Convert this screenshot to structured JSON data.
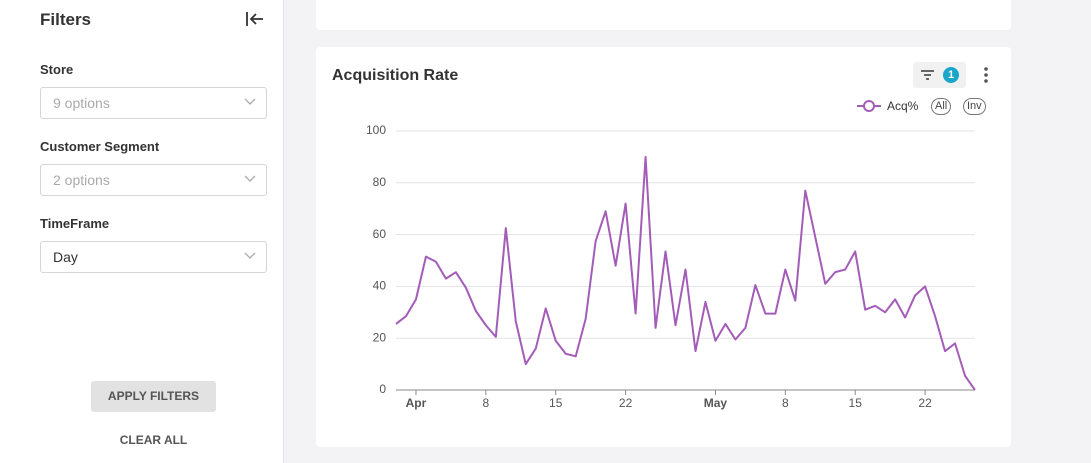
{
  "sidebar": {
    "title": "Filters",
    "filters": [
      {
        "label": "Store",
        "value": "9 options",
        "placeholder": true
      },
      {
        "label": "Customer Segment",
        "value": "2 options",
        "placeholder": true
      },
      {
        "label": "TimeFrame",
        "value": "Day",
        "placeholder": false
      }
    ],
    "apply": "APPLY FILTERS",
    "clear": "CLEAR ALL"
  },
  "card": {
    "filter_count": 1,
    "legend_buttons": [
      "All",
      "Inv"
    ]
  },
  "chart_data": {
    "type": "line",
    "title": "Acquisition Rate",
    "x": [
      "Mar 30",
      "Mar 31",
      "Apr 1",
      "Apr 2",
      "Apr 3",
      "Apr 4",
      "Apr 5",
      "Apr 6",
      "Apr 7",
      "Apr 8",
      "Apr 9",
      "Apr 10",
      "Apr 11",
      "Apr 12",
      "Apr 13",
      "Apr 14",
      "Apr 15",
      "Apr 16",
      "Apr 17",
      "Apr 18",
      "Apr 19",
      "Apr 20",
      "Apr 21",
      "Apr 22",
      "Apr 23",
      "Apr 24",
      "Apr 25",
      "Apr 26",
      "Apr 27",
      "Apr 28",
      "Apr 29",
      "Apr 30",
      "May 1",
      "May 2",
      "May 3",
      "May 4",
      "May 5",
      "May 6",
      "May 7",
      "May 8",
      "May 9",
      "May 10",
      "May 11",
      "May 12",
      "May 13",
      "May 14",
      "May 15",
      "May 16",
      "May 17",
      "May 18",
      "May 19",
      "May 20",
      "May 21",
      "May 22",
      "May 23",
      "May 24",
      "May 25",
      "May 26",
      "May 27"
    ],
    "series": [
      {
        "name": "Acq%",
        "color": "#a35cb8",
        "values": [
          25.5,
          28.5,
          35,
          51.5,
          49.5,
          43,
          45.5,
          39.5,
          30.5,
          25,
          20.5,
          62.5,
          26.5,
          10,
          16,
          31.5,
          19,
          14,
          13,
          27.5,
          57.5,
          69,
          48,
          72,
          29.5,
          90,
          24,
          53.5,
          25,
          46.5,
          15,
          34,
          19,
          25.5,
          19.5,
          24,
          40.5,
          29.5,
          29.5,
          46.5,
          34.5,
          77,
          59,
          41,
          45.5,
          46.5,
          53.5,
          31,
          32.5,
          30,
          35,
          28,
          36.5,
          40,
          28.5,
          15,
          18,
          5.5,
          0
        ]
      }
    ],
    "ylim": [
      0,
      100
    ],
    "yticks": [
      0,
      20,
      40,
      60,
      80,
      100
    ],
    "grid": true,
    "xticks": [
      {
        "value": "Apr 1",
        "label": "Apr"
      },
      {
        "value": "Apr 8",
        "label": "8"
      },
      {
        "value": "Apr 15",
        "label": "15"
      },
      {
        "value": "Apr 22",
        "label": "22"
      },
      {
        "value": "May 1",
        "label": "May"
      },
      {
        "value": "May 8",
        "label": "8"
      },
      {
        "value": "May 15",
        "label": "15"
      },
      {
        "value": "May 22",
        "label": "22"
      }
    ]
  }
}
